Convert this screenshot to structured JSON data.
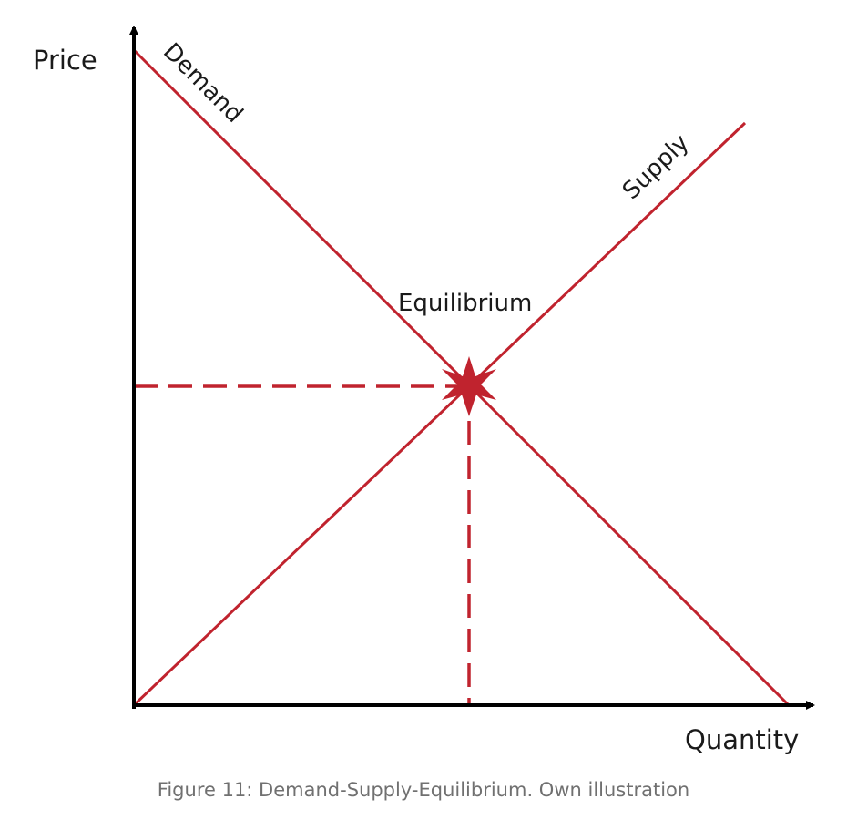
{
  "diagram": {
    "axes": {
      "y_label": "Price",
      "x_label": "Quantity"
    },
    "curves": {
      "demand_label": "Demand",
      "supply_label": "Supply"
    },
    "equilibrium_label": "Equilibrium",
    "colors": {
      "curve": "#c0232e",
      "axis": "#000000",
      "text": "#1a1a1a",
      "caption": "#707070"
    }
  },
  "caption": "Figure 11: Demand-Supply-Equilibrium. Own illustration"
}
